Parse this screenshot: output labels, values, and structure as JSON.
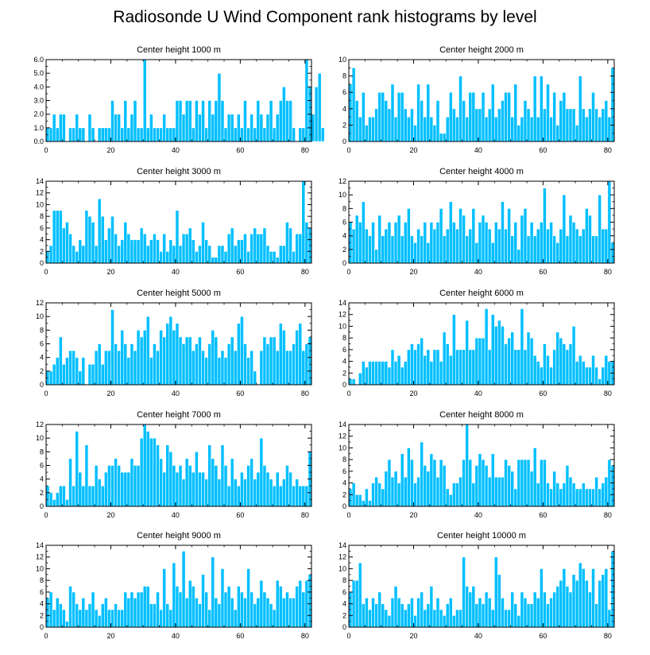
{
  "figure": {
    "title": "Radiosonde U Wind Component rank histograms by level"
  },
  "style": {
    "bar_color": "#00BFFF",
    "bar_edge": "#FFFFFF",
    "axis_color": "#000000"
  },
  "chart_data": [
    {
      "type": "bar",
      "title": "Center height 1000 m",
      "xlim": [
        0,
        82
      ],
      "ylim": [
        0,
        6
      ],
      "xticks": [
        0,
        20,
        40,
        60,
        80
      ],
      "xtick_labels": [
        "0",
        "20",
        "40",
        "60",
        "80"
      ],
      "yticks": [
        0,
        1,
        2,
        3,
        4,
        5,
        6
      ],
      "ytick_labels": [
        "0.0",
        "1.0",
        "2.0",
        "3.0",
        "4.0",
        "5.0",
        "6.0"
      ],
      "values": [
        1,
        1,
        2,
        1,
        2,
        2,
        0,
        1,
        1,
        2,
        1,
        1,
        0,
        2,
        1,
        0,
        1,
        1,
        1,
        1,
        3,
        2,
        2,
        1,
        3,
        1,
        2,
        3,
        1,
        1,
        6,
        1,
        2,
        1,
        1,
        1,
        2,
        1,
        1,
        1,
        3,
        3,
        2,
        3,
        3,
        1,
        3,
        2,
        3,
        1,
        3,
        2,
        3,
        5,
        3,
        1,
        2,
        2,
        1,
        2,
        1,
        3,
        1,
        2,
        1,
        3,
        2,
        1,
        2,
        3,
        1,
        2,
        3,
        4,
        3,
        3,
        1,
        0,
        1,
        1,
        6,
        4,
        2,
        4,
        5,
        1
      ]
    },
    {
      "type": "bar",
      "title": "Center height 2000 m",
      "xlim": [
        0,
        82
      ],
      "ylim": [
        0,
        10
      ],
      "xticks": [
        0,
        20,
        40,
        60,
        80
      ],
      "xtick_labels": [
        "0",
        "20",
        "40",
        "60",
        "80"
      ],
      "yticks": [
        0,
        2,
        4,
        6,
        8,
        10
      ],
      "ytick_labels": [
        "0",
        "2",
        "4",
        "6",
        "8",
        "10"
      ],
      "values": [
        7,
        9,
        5,
        3,
        6,
        2,
        3,
        3,
        4,
        6,
        6,
        5,
        4,
        7,
        3,
        6,
        6,
        4,
        3,
        4,
        2,
        7,
        5,
        3,
        7,
        3,
        2,
        5,
        1,
        1,
        3,
        6,
        4,
        3,
        8,
        5,
        3,
        6,
        6,
        4,
        4,
        6,
        3,
        4,
        7,
        3,
        4,
        5,
        6,
        6,
        3,
        7,
        2,
        3,
        5,
        4,
        3,
        8,
        3,
        8,
        4,
        7,
        3,
        6,
        2,
        5,
        6,
        4,
        4,
        4,
        2,
        8,
        4,
        3,
        4,
        6,
        4,
        3,
        4,
        5,
        3,
        9
      ]
    },
    {
      "type": "bar",
      "title": "Center height 3000 m",
      "xlim": [
        0,
        82
      ],
      "ylim": [
        0,
        14
      ],
      "xticks": [
        0,
        20,
        40,
        60,
        80
      ],
      "xtick_labels": [
        "0",
        "20",
        "40",
        "60",
        "80"
      ],
      "yticks": [
        0,
        2,
        4,
        6,
        8,
        10,
        12,
        14
      ],
      "ytick_labels": [
        "0",
        "2",
        "4",
        "6",
        "8",
        "10",
        "12",
        "14"
      ],
      "values": [
        2,
        3,
        9,
        9,
        9,
        6,
        7,
        5,
        3,
        2,
        4,
        3,
        9,
        8,
        7,
        3,
        11,
        8,
        4,
        6,
        8,
        5,
        3,
        4,
        7,
        5,
        4,
        4,
        4,
        6,
        5,
        3,
        4,
        5,
        4,
        2,
        5,
        2,
        4,
        3,
        9,
        3,
        5,
        5,
        6,
        4,
        2,
        3,
        7,
        4,
        3,
        1,
        1,
        3,
        3,
        2,
        5,
        6,
        3,
        4,
        4,
        5,
        2,
        5,
        6,
        5,
        5,
        6,
        3,
        2,
        2,
        1,
        3,
        3,
        7,
        6,
        2,
        5,
        5,
        14,
        7,
        6
      ]
    },
    {
      "type": "bar",
      "title": "Center height 4000 m",
      "xlim": [
        0,
        82
      ],
      "ylim": [
        0,
        12
      ],
      "xticks": [
        0,
        20,
        40,
        60,
        80
      ],
      "xtick_labels": [
        "0",
        "20",
        "40",
        "60",
        "80"
      ],
      "yticks": [
        0,
        2,
        4,
        6,
        8,
        10,
        12
      ],
      "ytick_labels": [
        "0",
        "2",
        "4",
        "6",
        "8",
        "10",
        "12"
      ],
      "values": [
        6,
        5,
        7,
        6,
        9,
        5,
        4,
        6,
        2,
        7,
        4,
        5,
        6,
        4,
        6,
        7,
        4,
        6,
        8,
        4,
        3,
        5,
        4,
        6,
        3,
        6,
        5,
        6,
        8,
        4,
        5,
        9,
        6,
        5,
        8,
        7,
        4,
        5,
        8,
        3,
        6,
        7,
        6,
        5,
        3,
        6,
        5,
        9,
        5,
        8,
        4,
        6,
        2,
        7,
        8,
        4,
        6,
        4,
        5,
        6,
        11,
        5,
        6,
        4,
        3,
        5,
        10,
        4,
        7,
        6,
        5,
        4,
        5,
        8,
        7,
        4,
        4,
        10,
        5,
        5,
        12,
        3
      ]
    },
    {
      "type": "bar",
      "title": "Center height 5000 m",
      "xlim": [
        0,
        82
      ],
      "ylim": [
        0,
        12
      ],
      "xticks": [
        0,
        20,
        40,
        60,
        80
      ],
      "xtick_labels": [
        "0",
        "20",
        "40",
        "60",
        "80"
      ],
      "yticks": [
        0,
        2,
        4,
        6,
        8,
        10,
        12
      ],
      "ytick_labels": [
        "0",
        "2",
        "4",
        "6",
        "8",
        "10",
        "12"
      ],
      "values": [
        2,
        2,
        3,
        4,
        7,
        3,
        4,
        5,
        5,
        4,
        2,
        4,
        0,
        3,
        3,
        5,
        6,
        3,
        5,
        5,
        11,
        6,
        5,
        8,
        6,
        4,
        6,
        5,
        8,
        7,
        8,
        10,
        4,
        6,
        5,
        8,
        7,
        9,
        10,
        8,
        9,
        7,
        6,
        7,
        7,
        5,
        6,
        7,
        5,
        4,
        6,
        8,
        7,
        4,
        5,
        4,
        6,
        7,
        5,
        9,
        10,
        6,
        4,
        5,
        2,
        0,
        5,
        7,
        6,
        7,
        7,
        5,
        9,
        8,
        5,
        5,
        6,
        8,
        9,
        5,
        6,
        7
      ]
    },
    {
      "type": "bar",
      "title": "Center height 6000 m",
      "xlim": [
        0,
        82
      ],
      "ylim": [
        0,
        14
      ],
      "xticks": [
        0,
        20,
        40,
        60,
        80
      ],
      "xtick_labels": [
        "0",
        "20",
        "40",
        "60",
        "80"
      ],
      "yticks": [
        0,
        2,
        4,
        6,
        8,
        10,
        12,
        14
      ],
      "ytick_labels": [
        "0",
        "2",
        "4",
        "6",
        "8",
        "10",
        "12",
        "14"
      ],
      "values": [
        1,
        1,
        0,
        2,
        4,
        3,
        4,
        4,
        4,
        4,
        4,
        4,
        3,
        6,
        4,
        5,
        3,
        4,
        6,
        7,
        6,
        7,
        8,
        5,
        6,
        4,
        6,
        6,
        4,
        9,
        7,
        5,
        12,
        6,
        6,
        6,
        11,
        6,
        6,
        8,
        8,
        8,
        13,
        6,
        12,
        10,
        11,
        10,
        7,
        8,
        9,
        6,
        6,
        13,
        6,
        9,
        8,
        5,
        4,
        3,
        7,
        5,
        3,
        6,
        9,
        8,
        7,
        6,
        7,
        10,
        4,
        5,
        4,
        3,
        3,
        5,
        3,
        1,
        3,
        5,
        4,
        4
      ]
    },
    {
      "type": "bar",
      "title": "Center height 7000 m",
      "xlim": [
        0,
        82
      ],
      "ylim": [
        0,
        12
      ],
      "xticks": [
        0,
        20,
        40,
        60,
        80
      ],
      "xtick_labels": [
        "0",
        "20",
        "40",
        "60",
        "80"
      ],
      "yticks": [
        0,
        2,
        4,
        6,
        8,
        10,
        12
      ],
      "ytick_labels": [
        "0",
        "2",
        "4",
        "6",
        "8",
        "10",
        "12"
      ],
      "values": [
        3,
        2,
        1,
        2,
        3,
        3,
        1,
        7,
        3,
        11,
        5,
        3,
        9,
        3,
        3,
        6,
        4,
        3,
        5,
        6,
        6,
        7,
        6,
        5,
        5,
        5,
        7,
        6,
        6,
        10,
        12,
        11,
        10,
        10,
        9,
        7,
        5,
        9,
        8,
        6,
        5,
        6,
        4,
        7,
        6,
        5,
        8,
        5,
        5,
        4,
        9,
        7,
        6,
        4,
        9,
        6,
        3,
        7,
        4,
        3,
        5,
        4,
        6,
        7,
        4,
        5,
        10,
        6,
        5,
        4,
        3,
        5,
        3,
        4,
        6,
        5,
        3,
        4,
        3,
        3,
        3,
        8
      ]
    },
    {
      "type": "bar",
      "title": "Center height 8000 m",
      "xlim": [
        0,
        82
      ],
      "ylim": [
        0,
        14
      ],
      "xticks": [
        0,
        20,
        40,
        60,
        80
      ],
      "xtick_labels": [
        "0",
        "20",
        "40",
        "60",
        "80"
      ],
      "yticks": [
        0,
        2,
        4,
        6,
        8,
        10,
        12,
        14
      ],
      "ytick_labels": [
        "0",
        "2",
        "4",
        "6",
        "8",
        "10",
        "12",
        "14"
      ],
      "values": [
        3,
        4,
        2,
        2,
        1,
        3,
        1,
        4,
        5,
        4,
        3,
        6,
        8,
        5,
        6,
        4,
        9,
        5,
        10,
        8,
        4,
        5,
        11,
        7,
        6,
        9,
        8,
        5,
        8,
        7,
        3,
        2,
        4,
        4,
        5,
        8,
        14,
        8,
        4,
        7,
        9,
        8,
        7,
        5,
        9,
        5,
        5,
        5,
        8,
        7,
        6,
        3,
        8,
        8,
        8,
        8,
        6,
        10,
        4,
        8,
        8,
        4,
        3,
        6,
        4,
        3,
        4,
        7,
        5,
        4,
        3,
        3,
        4,
        3,
        3,
        3,
        5,
        3,
        4,
        5,
        8,
        7
      ]
    },
    {
      "type": "bar",
      "title": "Center height 9000 m",
      "xlim": [
        0,
        82
      ],
      "ylim": [
        0,
        14
      ],
      "xticks": [
        0,
        20,
        40,
        60,
        80
      ],
      "xtick_labels": [
        "0",
        "20",
        "40",
        "60",
        "80"
      ],
      "yticks": [
        0,
        2,
        4,
        6,
        8,
        10,
        12,
        14
      ],
      "ytick_labels": [
        "0",
        "2",
        "4",
        "6",
        "8",
        "10",
        "12",
        "14"
      ],
      "values": [
        5,
        6,
        3,
        5,
        4,
        3,
        1,
        7,
        6,
        4,
        3,
        5,
        3,
        4,
        6,
        3,
        2,
        4,
        5,
        3,
        3,
        4,
        3,
        3,
        6,
        5,
        6,
        5,
        6,
        6,
        7,
        7,
        4,
        4,
        6,
        3,
        10,
        4,
        3,
        11,
        7,
        6,
        13,
        5,
        8,
        7,
        5,
        4,
        9,
        6,
        3,
        12,
        5,
        4,
        10,
        6,
        7,
        5,
        3,
        7,
        6,
        5,
        10,
        6,
        4,
        5,
        8,
        6,
        5,
        4,
        3,
        8,
        7,
        5,
        6,
        5,
        5,
        7,
        8,
        6,
        8,
        9
      ]
    },
    {
      "type": "bar",
      "title": "Center height 10000 m",
      "xlim": [
        0,
        82
      ],
      "ylim": [
        0,
        14
      ],
      "xticks": [
        0,
        20,
        40,
        60,
        80
      ],
      "xtick_labels": [
        "0",
        "20",
        "40",
        "60",
        "80"
      ],
      "yticks": [
        0,
        2,
        4,
        6,
        8,
        10,
        12,
        14
      ],
      "ytick_labels": [
        "0",
        "2",
        "4",
        "6",
        "8",
        "10",
        "12",
        "14"
      ],
      "values": [
        6,
        8,
        8,
        11,
        4,
        5,
        3,
        5,
        4,
        6,
        4,
        3,
        2,
        5,
        7,
        5,
        4,
        3,
        4,
        5,
        2,
        5,
        6,
        3,
        4,
        7,
        3,
        5,
        3,
        2,
        4,
        5,
        2,
        3,
        3,
        12,
        7,
        6,
        7,
        4,
        5,
        4,
        6,
        5,
        3,
        12,
        9,
        5,
        3,
        3,
        6,
        4,
        2,
        6,
        5,
        4,
        4,
        6,
        5,
        10,
        6,
        4,
        5,
        6,
        7,
        8,
        10,
        7,
        6,
        9,
        8,
        11,
        10,
        8,
        6,
        10,
        4,
        8,
        9,
        10,
        3,
        13
      ]
    }
  ]
}
